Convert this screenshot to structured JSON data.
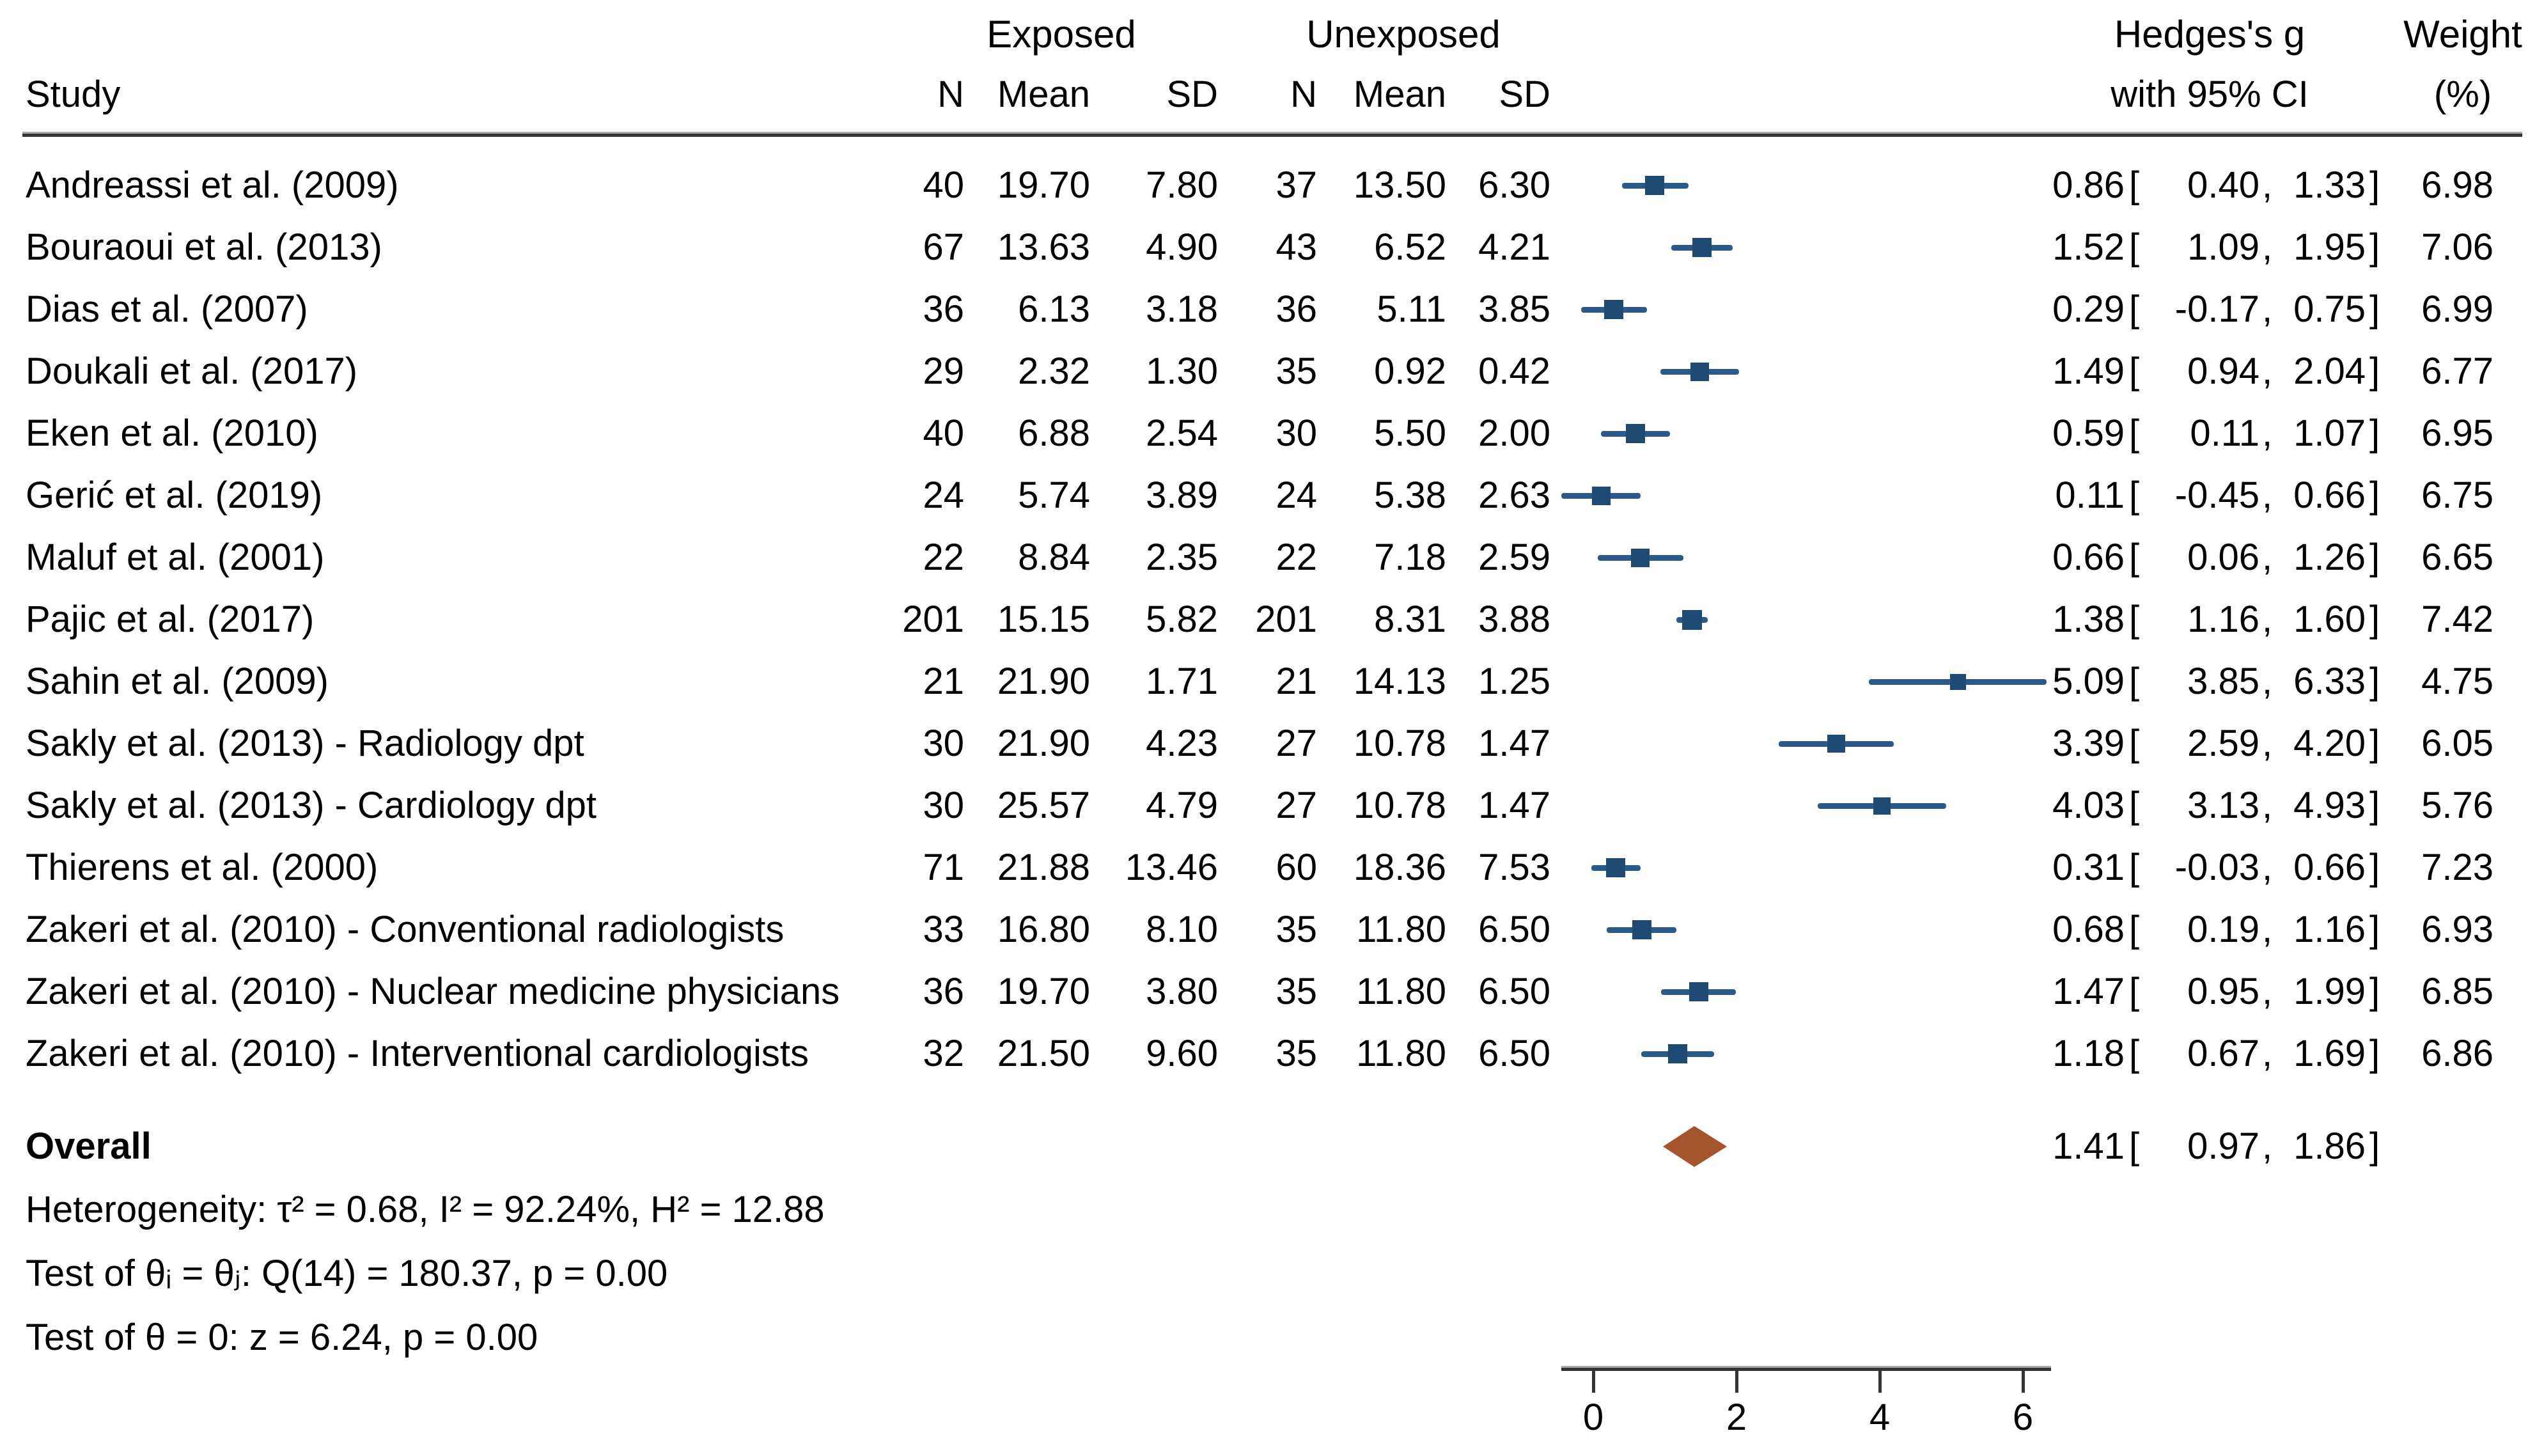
{
  "colors": {
    "marker": "#1f4a73",
    "ci_line": "#2a5a89",
    "diamond": "#a5552d",
    "rule": "#343434",
    "text": "#000000"
  },
  "header": {
    "study": "Study",
    "exposed": "Exposed",
    "unexposed": "Unexposed",
    "n": "N",
    "mean": "Mean",
    "sd": "SD",
    "effect_line1": "Hedges's g",
    "effect_line2": "with 95% CI",
    "weight_line1": "Weight",
    "weight_line2": "(%)",
    "bracket_open": "[",
    "comma": ",",
    "bracket_close": "]"
  },
  "chart_data": {
    "type": "forest",
    "effect_measure": "Hedges's g",
    "ci_level": "95% CI",
    "x_axis": {
      "ticks": [
        "0",
        "2",
        "4",
        "6"
      ],
      "range": [
        -0.6,
        6.5
      ],
      "grid": false
    },
    "studies": [
      {
        "name": "Andreassi et al. (2009)",
        "exposed_n": "40",
        "exposed_mean": "19.70",
        "exposed_sd": "7.80",
        "unexposed_n": "37",
        "unexposed_mean": "13.50",
        "unexposed_sd": "6.30",
        "est": "0.86",
        "lo": "0.40",
        "hi": "1.33",
        "weight": "6.98"
      },
      {
        "name": "Bouraoui et al. (2013)",
        "exposed_n": "67",
        "exposed_mean": "13.63",
        "exposed_sd": "4.90",
        "unexposed_n": "43",
        "unexposed_mean": "6.52",
        "unexposed_sd": "4.21",
        "est": "1.52",
        "lo": "1.09",
        "hi": "1.95",
        "weight": "7.06"
      },
      {
        "name": "Dias et al. (2007)",
        "exposed_n": "36",
        "exposed_mean": "6.13",
        "exposed_sd": "3.18",
        "unexposed_n": "36",
        "unexposed_mean": "5.11",
        "unexposed_sd": "3.85",
        "est": "0.29",
        "lo": "-0.17",
        "hi": "0.75",
        "weight": "6.99"
      },
      {
        "name": "Doukali et al. (2017)",
        "exposed_n": "29",
        "exposed_mean": "2.32",
        "exposed_sd": "1.30",
        "unexposed_n": "35",
        "unexposed_mean": "0.92",
        "unexposed_sd": "0.42",
        "est": "1.49",
        "lo": "0.94",
        "hi": "2.04",
        "weight": "6.77"
      },
      {
        "name": "Eken et al. (2010)",
        "exposed_n": "40",
        "exposed_mean": "6.88",
        "exposed_sd": "2.54",
        "unexposed_n": "30",
        "unexposed_mean": "5.50",
        "unexposed_sd": "2.00",
        "est": "0.59",
        "lo": "0.11",
        "hi": "1.07",
        "weight": "6.95"
      },
      {
        "name": "Gerić et al. (2019)",
        "exposed_n": "24",
        "exposed_mean": "5.74",
        "exposed_sd": "3.89",
        "unexposed_n": "24",
        "unexposed_mean": "5.38",
        "unexposed_sd": "2.63",
        "est": "0.11",
        "lo": "-0.45",
        "hi": "0.66",
        "weight": "6.75"
      },
      {
        "name": "Maluf et al. (2001)",
        "exposed_n": "22",
        "exposed_mean": "8.84",
        "exposed_sd": "2.35",
        "unexposed_n": "22",
        "unexposed_mean": "7.18",
        "unexposed_sd": "2.59",
        "est": "0.66",
        "lo": "0.06",
        "hi": "1.26",
        "weight": "6.65"
      },
      {
        "name": "Pajic et al. (2017)",
        "exposed_n": "201",
        "exposed_mean": "15.15",
        "exposed_sd": "5.82",
        "unexposed_n": "201",
        "unexposed_mean": "8.31",
        "unexposed_sd": "3.88",
        "est": "1.38",
        "lo": "1.16",
        "hi": "1.60",
        "weight": "7.42"
      },
      {
        "name": "Sahin et al. (2009)",
        "exposed_n": "21",
        "exposed_mean": "21.90",
        "exposed_sd": "1.71",
        "unexposed_n": "21",
        "unexposed_mean": "14.13",
        "unexposed_sd": "1.25",
        "est": "5.09",
        "lo": "3.85",
        "hi": "6.33",
        "weight": "4.75"
      },
      {
        "name": "Sakly et al. (2013) - Radiology dpt",
        "exposed_n": "30",
        "exposed_mean": "21.90",
        "exposed_sd": "4.23",
        "unexposed_n": "27",
        "unexposed_mean": "10.78",
        "unexposed_sd": "1.47",
        "est": "3.39",
        "lo": "2.59",
        "hi": "4.20",
        "weight": "6.05"
      },
      {
        "name": "Sakly et al. (2013) - Cardiology dpt",
        "exposed_n": "30",
        "exposed_mean": "25.57",
        "exposed_sd": "4.79",
        "unexposed_n": "27",
        "unexposed_mean": "10.78",
        "unexposed_sd": "1.47",
        "est": "4.03",
        "lo": "3.13",
        "hi": "4.93",
        "weight": "5.76"
      },
      {
        "name": "Thierens et al. (2000)",
        "exposed_n": "71",
        "exposed_mean": "21.88",
        "exposed_sd": "13.46",
        "unexposed_n": "60",
        "unexposed_mean": "18.36",
        "unexposed_sd": "7.53",
        "est": "0.31",
        "lo": "-0.03",
        "hi": "0.66",
        "weight": "7.23"
      },
      {
        "name": "Zakeri et al. (2010) - Conventional radiologists",
        "exposed_n": "33",
        "exposed_mean": "16.80",
        "exposed_sd": "8.10",
        "unexposed_n": "35",
        "unexposed_mean": "11.80",
        "unexposed_sd": "6.50",
        "est": "0.68",
        "lo": "0.19",
        "hi": "1.16",
        "weight": "6.93"
      },
      {
        "name": "Zakeri et al. (2010) - Nuclear medicine physicians",
        "exposed_n": "36",
        "exposed_mean": "19.70",
        "exposed_sd": "3.80",
        "unexposed_n": "35",
        "unexposed_mean": "11.80",
        "unexposed_sd": "6.50",
        "est": "1.47",
        "lo": "0.95",
        "hi": "1.99",
        "weight": "6.85"
      },
      {
        "name": "Zakeri et al. (2010) - Interventional cardiologists",
        "exposed_n": "32",
        "exposed_mean": "21.50",
        "exposed_sd": "9.60",
        "unexposed_n": "35",
        "unexposed_mean": "11.80",
        "unexposed_sd": "6.50",
        "est": "1.18",
        "lo": "0.67",
        "hi": "1.69",
        "weight": "6.86"
      }
    ],
    "overall": {
      "label": "Overall",
      "est": "1.41",
      "lo": "0.97",
      "hi": "1.86"
    },
    "stats": [
      "Heterogeneity: τ² = 0.68, I² = 92.24%, H² = 12.88",
      "Test of θᵢ = θⱼ: Q(14) = 180.37, p = 0.00",
      "Test of θ = 0: z = 6.24, p = 0.00"
    ]
  }
}
